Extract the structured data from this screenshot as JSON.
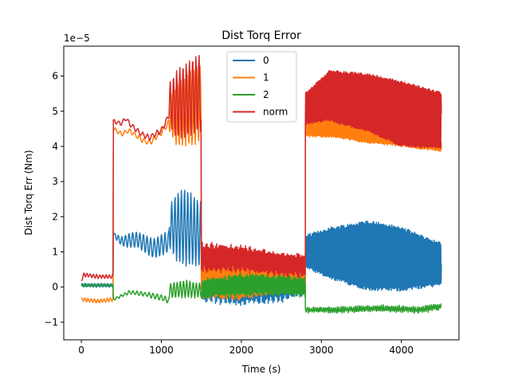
{
  "chart_data": {
    "type": "line",
    "title": "Dist Torq Error",
    "xlabel": "Time (s)",
    "ylabel": "Dist Torq Err (Nm)",
    "y_offset_label": "1e−5",
    "xlim": [
      -220,
      4720
    ],
    "ylim": [
      -1.5,
      6.85
    ],
    "x_ticks": [
      0,
      1000,
      2000,
      3000,
      4000
    ],
    "x_tick_labels": [
      "0",
      "1000",
      "2000",
      "3000",
      "4000"
    ],
    "y_ticks": [
      -1,
      0,
      1,
      2,
      3,
      4,
      5,
      6
    ],
    "y_tick_labels": [
      "−1",
      "0",
      "1",
      "2",
      "3",
      "4",
      "5",
      "6"
    ],
    "grid": false,
    "legend_position": "upper-center",
    "series": [
      {
        "name": "0",
        "color": "#1f77b4",
        "segments": [
          {
            "t0": 0,
            "t1": 400,
            "base": [
              [
                0,
                0.05
              ],
              [
                400,
                0.05
              ]
            ],
            "amp": [
              [
                0,
                0.05
              ],
              [
                400,
                0.05
              ]
            ],
            "period": 40,
            "noise": 0.02
          },
          {
            "t0": 400,
            "t1": 1100,
            "base": [
              [
                400,
                1.5
              ],
              [
                500,
                1.3
              ],
              [
                700,
                1.35
              ],
              [
                900,
                1.1
              ],
              [
                1100,
                1.3
              ]
            ],
            "amp": [
              [
                400,
                0.05
              ],
              [
                600,
                0.2
              ],
              [
                800,
                0.25
              ],
              [
                1000,
                0.3
              ],
              [
                1100,
                0.3
              ]
            ],
            "period": 45,
            "noise": 0.03
          },
          {
            "t0": 1100,
            "t1": 1500,
            "base": [
              [
                1100,
                1.7
              ],
              [
                1300,
                1.7
              ],
              [
                1500,
                1.5
              ]
            ],
            "amp": [
              [
                1100,
                0.6
              ],
              [
                1200,
                1.0
              ],
              [
                1300,
                1.1
              ],
              [
                1500,
                0.9
              ]
            ],
            "period": 40,
            "noise": 0.03
          },
          {
            "t0": 1500,
            "t1": 2800,
            "base": [
              [
                1500,
                0.3
              ],
              [
                2000,
                0.1
              ],
              [
                2500,
                0.1
              ],
              [
                2800,
                0.2
              ]
            ],
            "amp": [
              [
                1500,
                0.7
              ],
              [
                2000,
                0.6
              ],
              [
                2500,
                0.5
              ],
              [
                2800,
                0.4
              ]
            ],
            "period": 15,
            "noise": 0.12
          },
          {
            "t0": 2800,
            "t1": 4500,
            "base": [
              [
                2800,
                1.0
              ],
              [
                3600,
                0.9
              ],
              [
                4000,
                0.8
              ],
              [
                4500,
                0.65
              ]
            ],
            "amp": [
              [
                2800,
                0.5
              ],
              [
                3100,
                0.8
              ],
              [
                3600,
                1.1
              ],
              [
                4000,
                1.0
              ],
              [
                4500,
                0.65
              ]
            ],
            "period": 12,
            "noise": 0.1
          }
        ]
      },
      {
        "name": "1",
        "color": "#ff7f0e",
        "segments": [
          {
            "t0": 0,
            "t1": 400,
            "base": [
              [
                0,
                -0.35
              ],
              [
                200,
                -0.4
              ],
              [
                400,
                -0.35
              ]
            ],
            "amp": [
              [
                0,
                0.05
              ],
              [
                400,
                0.05
              ]
            ],
            "period": 40,
            "noise": 0.02
          },
          {
            "t0": 400,
            "t1": 1100,
            "base": [
              [
                400,
                4.5
              ],
              [
                500,
                4.35
              ],
              [
                600,
                4.45
              ],
              [
                750,
                4.2
              ],
              [
                850,
                4.1
              ],
              [
                1000,
                4.4
              ],
              [
                1100,
                4.7
              ]
            ],
            "amp": [
              [
                400,
                0.05
              ],
              [
                1100,
                0.08
              ]
            ],
            "period": 60,
            "noise": 0.03
          },
          {
            "t0": 1100,
            "t1": 1500,
            "base": [
              [
                1100,
                4.9
              ],
              [
                1200,
                4.9
              ],
              [
                1300,
                5.0
              ],
              [
                1450,
                5.2
              ],
              [
                1500,
                5.2
              ]
            ],
            "amp": [
              [
                1100,
                0.5
              ],
              [
                1200,
                0.9
              ],
              [
                1400,
                1.1
              ],
              [
                1500,
                1.1
              ]
            ],
            "period": 40,
            "noise": 0.03
          },
          {
            "t0": 1500,
            "t1": 2800,
            "base": [
              [
                1500,
                0.3
              ],
              [
                2000,
                0.2
              ],
              [
                2500,
                0.3
              ],
              [
                2800,
                0.3
              ]
            ],
            "amp": [
              [
                1500,
                0.7
              ],
              [
                2000,
                0.6
              ],
              [
                2500,
                0.5
              ],
              [
                2800,
                0.45
              ]
            ],
            "period": 16,
            "noise": 0.12
          },
          {
            "t0": 2800,
            "t1": 4500,
            "base": [
              [
                2800,
                4.6
              ],
              [
                3100,
                4.6
              ],
              [
                3600,
                4.35
              ],
              [
                4000,
                4.2
              ],
              [
                4500,
                4.0
              ]
            ],
            "amp": [
              [
                2800,
                0.35
              ],
              [
                3100,
                0.35
              ],
              [
                4000,
                0.2
              ],
              [
                4500,
                0.15
              ]
            ],
            "period": 12,
            "noise": 0.06
          }
        ]
      },
      {
        "name": "2",
        "color": "#2ca02c",
        "segments": [
          {
            "t0": 0,
            "t1": 400,
            "base": [
              [
                0,
                0.05
              ],
              [
                400,
                0.05
              ]
            ],
            "amp": [
              [
                0,
                0.03
              ],
              [
                400,
                0.03
              ]
            ],
            "period": 40,
            "noise": 0.02
          },
          {
            "t0": 400,
            "t1": 1100,
            "base": [
              [
                400,
                -0.35
              ],
              [
                600,
                -0.15
              ],
              [
                800,
                -0.2
              ],
              [
                1000,
                -0.3
              ],
              [
                1100,
                -0.4
              ]
            ],
            "amp": [
              [
                400,
                0.03
              ],
              [
                1100,
                0.08
              ]
            ],
            "period": 50,
            "noise": 0.03
          },
          {
            "t0": 1100,
            "t1": 1500,
            "base": [
              [
                1100,
                -0.1
              ],
              [
                1300,
                -0.05
              ],
              [
                1500,
                -0.1
              ]
            ],
            "amp": [
              [
                1100,
                0.2
              ],
              [
                1300,
                0.25
              ],
              [
                1500,
                0.2
              ]
            ],
            "period": 40,
            "noise": 0.03
          },
          {
            "t0": 1500,
            "t1": 2800,
            "base": [
              [
                1500,
                -0.05
              ],
              [
                2000,
                0.05
              ],
              [
                2500,
                0.05
              ],
              [
                2800,
                0.0
              ]
            ],
            "amp": [
              [
                1500,
                0.25
              ],
              [
                2000,
                0.3
              ],
              [
                2800,
                0.25
              ]
            ],
            "period": 17,
            "noise": 0.1
          },
          {
            "t0": 2800,
            "t1": 4500,
            "base": [
              [
                2800,
                -0.65
              ],
              [
                3200,
                -0.65
              ],
              [
                3800,
                -0.6
              ],
              [
                4200,
                -0.65
              ],
              [
                4500,
                -0.55
              ]
            ],
            "amp": [
              [
                2800,
                0.06
              ],
              [
                4500,
                0.08
              ]
            ],
            "period": 25,
            "noise": 0.07
          }
        ]
      },
      {
        "name": "norm",
        "color": "#d62728",
        "segments": [
          {
            "t0": 0,
            "t1": 400,
            "base": [
              [
                0,
                0.2
              ],
              [
                30,
                0.35
              ],
              [
                200,
                0.3
              ],
              [
                400,
                0.3
              ]
            ],
            "amp": [
              [
                0,
                0.05
              ],
              [
                400,
                0.05
              ]
            ],
            "period": 40,
            "noise": 0.02
          },
          {
            "t0": 400,
            "t1": 1100,
            "base": [
              [
                400,
                4.72
              ],
              [
                500,
                4.65
              ],
              [
                560,
                4.8
              ],
              [
                620,
                4.6
              ],
              [
                750,
                4.35
              ],
              [
                850,
                4.25
              ],
              [
                1000,
                4.45
              ],
              [
                1100,
                4.9
              ]
            ],
            "amp": [
              [
                400,
                0.05
              ],
              [
                1100,
                0.08
              ]
            ],
            "period": 60,
            "noise": 0.03
          },
          {
            "t0": 1100,
            "t1": 1500,
            "base": [
              [
                1100,
                5.2
              ],
              [
                1200,
                5.2
              ],
              [
                1300,
                5.3
              ],
              [
                1450,
                5.5
              ],
              [
                1500,
                5.5
              ]
            ],
            "amp": [
              [
                1100,
                0.6
              ],
              [
                1200,
                1.0
              ],
              [
                1400,
                1.1
              ],
              [
                1500,
                1.1
              ]
            ],
            "period": 40,
            "noise": 0.03
          },
          {
            "t0": 1500,
            "t1": 2800,
            "base": [
              [
                1500,
                0.85
              ],
              [
                2000,
                0.8
              ],
              [
                2500,
                0.65
              ],
              [
                2800,
                0.6
              ]
            ],
            "amp": [
              [
                1500,
                0.4
              ],
              [
                2000,
                0.35
              ],
              [
                2800,
                0.3
              ]
            ],
            "period": 15,
            "noise": 0.1
          },
          {
            "t0": 2800,
            "t1": 4500,
            "base": [
              [
                2800,
                5.1
              ],
              [
                3100,
                5.5
              ],
              [
                3600,
                5.3
              ],
              [
                4000,
                5.0
              ],
              [
                4500,
                4.8
              ]
            ],
            "amp": [
              [
                2800,
                0.5
              ],
              [
                3100,
                0.8
              ],
              [
                4000,
                1.05
              ],
              [
                4500,
                0.9
              ]
            ],
            "period": 12,
            "noise": 0.07
          }
        ]
      }
    ]
  }
}
